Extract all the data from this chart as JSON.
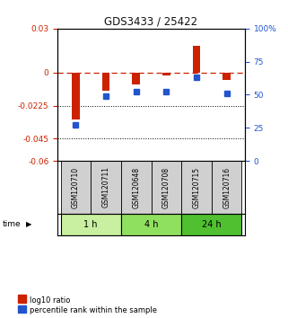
{
  "title": "GDS3433 / 25422",
  "samples": [
    "GSM120710",
    "GSM120711",
    "GSM120648",
    "GSM120708",
    "GSM120715",
    "GSM120716"
  ],
  "log10_ratio": [
    -0.032,
    -0.012,
    -0.008,
    -0.002,
    0.018,
    -0.005
  ],
  "percentile_rank": [
    27,
    49,
    52,
    52,
    63,
    51
  ],
  "time_groups": [
    {
      "label": "1 h",
      "start": 0,
      "end": 2,
      "color": "#c8f0a0"
    },
    {
      "label": "4 h",
      "start": 2,
      "end": 4,
      "color": "#90e060"
    },
    {
      "label": "24 h",
      "start": 4,
      "end": 6,
      "color": "#50c030"
    }
  ],
  "ylim_left": [
    -0.06,
    0.03
  ],
  "ylim_right": [
    0,
    100
  ],
  "yticks_left": [
    0.03,
    0,
    -0.0225,
    -0.045,
    -0.06
  ],
  "yticks_left_labels": [
    "0.03",
    "0",
    "-0.0225",
    "-0.045",
    "-0.06"
  ],
  "yticks_right": [
    100,
    75,
    50,
    25,
    0
  ],
  "yticks_right_labels": [
    "100%",
    "75",
    "50",
    "25",
    "0"
  ],
  "bar_color": "#cc2200",
  "dot_color": "#2255cc",
  "left_tick_color": "#cc2200",
  "right_tick_color": "#2255cc",
  "legend_bar_label": "log10 ratio",
  "legend_dot_label": "percentile rank within the sample",
  "bar_width": 0.25
}
